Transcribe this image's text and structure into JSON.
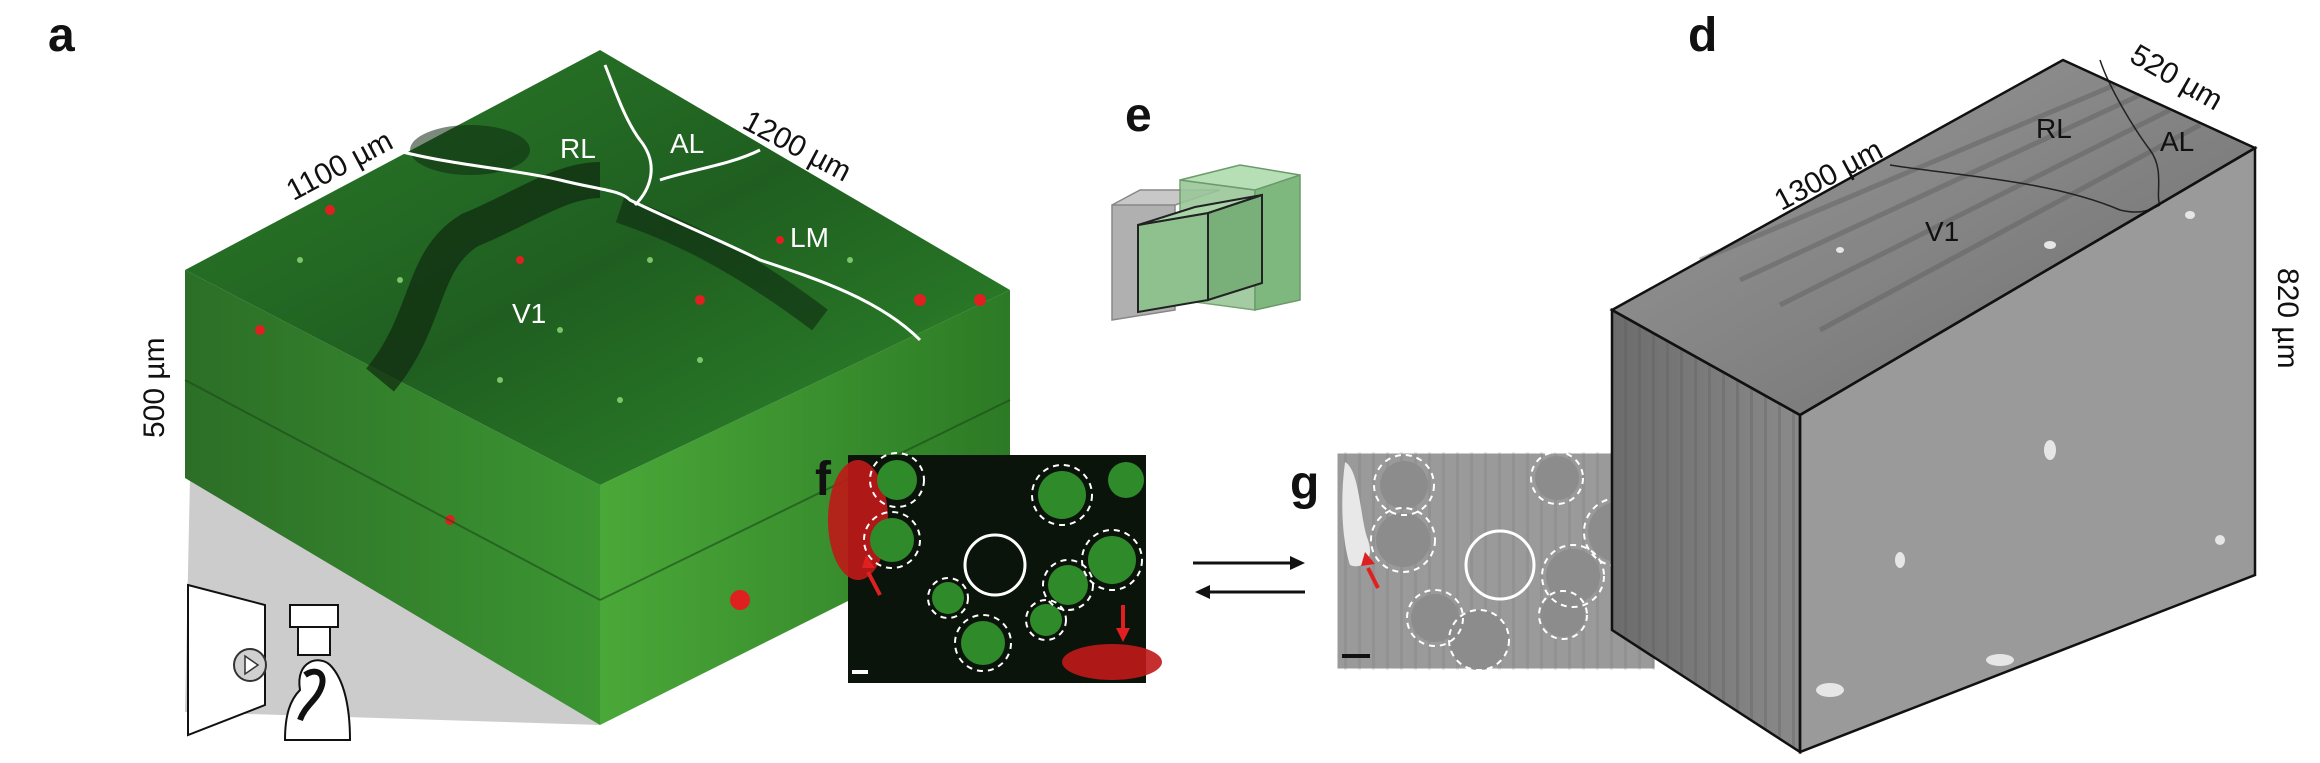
{
  "panels": {
    "a": {
      "letter": "a",
      "dims": [
        "1100 µm",
        "1200 µm",
        "500 µm"
      ],
      "regions": [
        "RL",
        "AL",
        "LM",
        "V1"
      ]
    },
    "d": {
      "letter": "d",
      "dims": [
        "1300 µm",
        "520 µm",
        "820 µm"
      ],
      "regions": [
        "RL",
        "AL",
        "V1"
      ]
    },
    "e": {
      "letter": "e"
    },
    "f": {
      "letter": "f"
    },
    "g": {
      "letter": "g"
    }
  },
  "colors": {
    "gfp": "#2f8a2a",
    "red": "#e02020",
    "em_gray": "#8a8a8a",
    "box_green": "#8ac98a"
  },
  "icons": [
    "microscope-mouse-icon",
    "play-stimulus-icon",
    "bidirectional-arrows-icon"
  ]
}
